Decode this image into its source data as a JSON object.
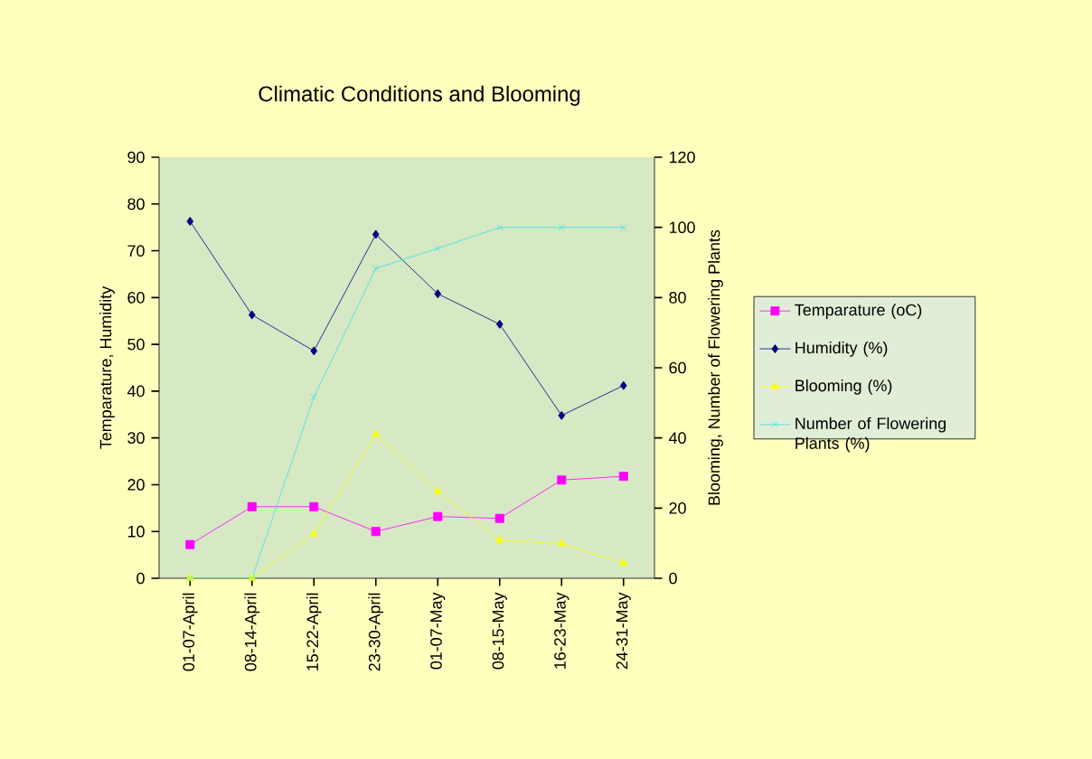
{
  "chart_data": {
    "type": "line",
    "title": "Climatic Conditions and Blooming",
    "ylabel": "Temparature,  Humidity",
    "y2label": "Blooming,  Number of Flowering  Plants",
    "categories": [
      "01-07-April",
      "08-14-April",
      "15-22-April",
      "23-30-April",
      "01-07-May",
      "08-15-May",
      "16-23-May",
      "24-31-May"
    ],
    "series": [
      {
        "name": "Temparature (oC)",
        "color": "#ff00ff",
        "marker": "square",
        "values": [
          7.2,
          15.3,
          15.3,
          10,
          13.2,
          12.8,
          21,
          21.8
        ]
      },
      {
        "name": "Humidity (%)",
        "color": "#000080",
        "marker": "diamond",
        "values": [
          76.3,
          56.3,
          48.6,
          73.5,
          60.8,
          54.3,
          34.8,
          41.2
        ]
      },
      {
        "name": "Blooming (%)",
        "color": "#ffff00",
        "marker": "triangle",
        "axis": "y2",
        "values": [
          0,
          0,
          12.6,
          41,
          24.8,
          10.9,
          9.9,
          4.3
        ]
      },
      {
        "name": "Number of Flowering Plants (%)",
        "color": "#33e5e5",
        "marker": "cross",
        "axis": "y2",
        "values": [
          0,
          0,
          51.6,
          88.3,
          94,
          100,
          100,
          100
        ]
      }
    ],
    "ylim": [
      0,
      90
    ],
    "yticks": [
      0,
      10,
      20,
      30,
      40,
      50,
      60,
      70,
      80,
      90
    ],
    "y2lim": [
      0,
      120
    ],
    "y2ticks": [
      0,
      20,
      40,
      60,
      80,
      100,
      120
    ],
    "legend": "right",
    "grid": false
  }
}
